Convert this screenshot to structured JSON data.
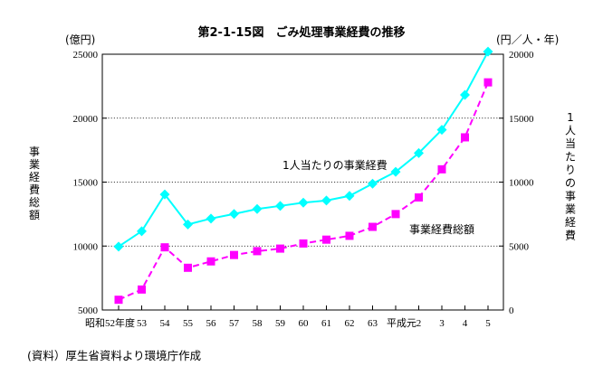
{
  "chart_data": {
    "type": "line",
    "title": "第2-1-15図　ごみ処理事業経費の推移",
    "left_axis": {
      "unit": "(億円)",
      "label": "事業経費総額",
      "ylim": [
        5000,
        25000
      ],
      "ticks": [
        5000,
        10000,
        15000,
        20000,
        25000
      ]
    },
    "right_axis": {
      "unit": "(円／人・年)",
      "label": "1人当たりの事業経費",
      "ylim": [
        0,
        20000
      ],
      "ticks": [
        0,
        5000,
        10000,
        15000,
        20000
      ]
    },
    "categories": [
      "昭和52年度",
      "53",
      "54",
      "55",
      "56",
      "57",
      "58",
      "59",
      "60",
      "61",
      "62",
      "63",
      "平成元",
      "2",
      "3",
      "4",
      "5"
    ],
    "series": [
      {
        "name": "1人当たりの事業経費",
        "axis": "right",
        "color": "#00FFFF",
        "marker": "diamond",
        "line": "solid",
        "values": [
          4960,
          6160,
          9040,
          6690,
          7150,
          7510,
          7900,
          8140,
          8390,
          8560,
          8920,
          9880,
          10800,
          12270,
          14090,
          16820,
          20200
        ]
      },
      {
        "name": "事業経費総額",
        "axis": "left",
        "color": "#FF00FF",
        "marker": "square",
        "line": "dashed",
        "values": [
          5800,
          6600,
          9900,
          8300,
          8800,
          9300,
          9600,
          9800,
          10200,
          10500,
          10800,
          11500,
          12500,
          13800,
          16000,
          18500,
          22800
        ]
      }
    ],
    "grid": "horizontal-dotted"
  },
  "source_note": "(資料）厚生省資料より環境庁作成"
}
